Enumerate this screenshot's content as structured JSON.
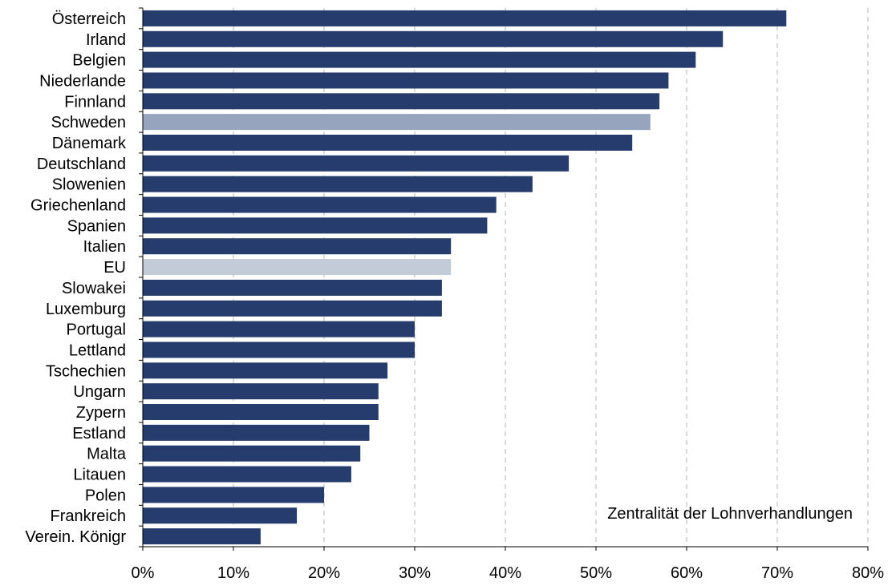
{
  "chart_data": {
    "type": "bar",
    "orientation": "horizontal",
    "categories": [
      "Österreich",
      "Irland",
      "Belgien",
      "Niederlande",
      "Finnland",
      "Schweden",
      "Dänemark",
      "Deutschland",
      "Slowenien",
      "Griechenland",
      "Spanien",
      "Italien",
      "EU",
      "Slowakei",
      "Luxemburg",
      "Portugal",
      "Lettland",
      "Tschechien",
      "Ungarn",
      "Zypern",
      "Estland",
      "Malta",
      "Litauen",
      "Polen",
      "Frankreich",
      "Verein. Königr"
    ],
    "values": [
      71,
      64,
      61,
      58,
      57,
      56,
      54,
      47,
      43,
      39,
      38,
      34,
      34,
      33,
      33,
      30,
      30,
      27,
      26,
      26,
      25,
      24,
      23,
      20,
      17,
      13
    ],
    "value_unit": "%",
    "xlim": [
      0,
      80
    ],
    "x_ticks": [
      0,
      10,
      20,
      30,
      40,
      50,
      60,
      70,
      80
    ],
    "x_tick_labels": [
      "0%",
      "10%",
      "20%",
      "30%",
      "40%",
      "50%",
      "60%",
      "70%",
      "80%"
    ],
    "annotation": "Zentralität der Lohnverhandlungen",
    "grid": "vertical dashed",
    "colors": {
      "default": "#253c6d",
      "highlight": "#96a5bd",
      "eu": "#c3cad8",
      "grid": "#b5b5b5",
      "axis": "#000000"
    },
    "highlighted": {
      "Schweden": "highlight",
      "EU": "eu"
    }
  }
}
